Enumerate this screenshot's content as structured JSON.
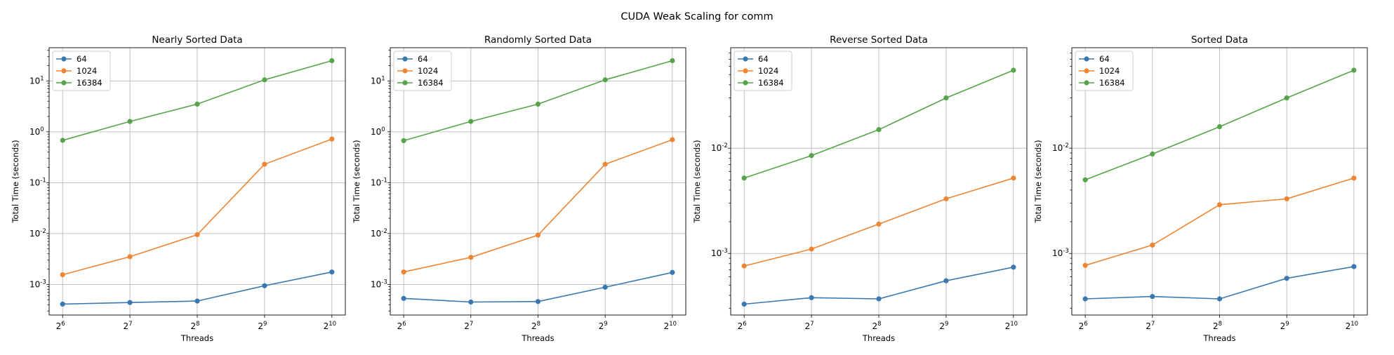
{
  "figure_title": "CUDA Weak Scaling for comm",
  "colors": {
    "64": "#3a78b0",
    "1024": "#ee8533",
    "16384": "#56a44a",
    "grid": "#b0b0b0",
    "axis": "#000000"
  },
  "chart_data": [
    {
      "type": "line",
      "title": "Nearly Sorted Data",
      "xlabel": "Threads",
      "ylabel": "Total Time (seconds)",
      "xscale": "log2",
      "yscale": "log10",
      "grid": true,
      "legend": "top-left",
      "x": [
        64,
        128,
        256,
        512,
        1024
      ],
      "x_tick_labels": [
        [
          "2",
          "6"
        ],
        [
          "2",
          "7"
        ],
        [
          "2",
          "8"
        ],
        [
          "2",
          "9"
        ],
        [
          "2",
          "10"
        ]
      ],
      "ylim": [
        0.00025,
        45
      ],
      "y_ticks": [
        {
          "value": 0.001,
          "exp": "-3"
        },
        {
          "value": 0.01,
          "exp": "-2"
        },
        {
          "value": 0.1,
          "exp": "-1"
        },
        {
          "value": 1,
          "exp": "0"
        },
        {
          "value": 10,
          "exp": "1"
        }
      ],
      "series": [
        {
          "name": "64",
          "values": [
            0.00041,
            0.00044,
            0.00047,
            0.00094,
            0.00175
          ]
        },
        {
          "name": "1024",
          "values": [
            0.00155,
            0.0035,
            0.0095,
            0.23,
            0.72
          ]
        },
        {
          "name": "16384",
          "values": [
            0.68,
            1.6,
            3.5,
            10.5,
            25
          ]
        }
      ]
    },
    {
      "type": "line",
      "title": "Randomly Sorted Data",
      "xlabel": "Threads",
      "ylabel": "Total Time (seconds)",
      "xscale": "log2",
      "yscale": "log10",
      "grid": true,
      "legend": "top-left",
      "x": [
        64,
        128,
        256,
        512,
        1024
      ],
      "x_tick_labels": [
        [
          "2",
          "6"
        ],
        [
          "2",
          "7"
        ],
        [
          "2",
          "8"
        ],
        [
          "2",
          "9"
        ],
        [
          "2",
          "10"
        ]
      ],
      "ylim": [
        0.00025,
        45
      ],
      "y_ticks": [
        {
          "value": 0.001,
          "exp": "-3"
        },
        {
          "value": 0.01,
          "exp": "-2"
        },
        {
          "value": 0.1,
          "exp": "-1"
        },
        {
          "value": 1,
          "exp": "0"
        },
        {
          "value": 10,
          "exp": "1"
        }
      ],
      "series": [
        {
          "name": "64",
          "values": [
            0.00053,
            0.00045,
            0.00046,
            0.00088,
            0.00172
          ]
        },
        {
          "name": "1024",
          "values": [
            0.00175,
            0.0034,
            0.0093,
            0.23,
            0.7
          ]
        },
        {
          "name": "16384",
          "values": [
            0.67,
            1.6,
            3.5,
            10.5,
            25
          ]
        }
      ]
    },
    {
      "type": "line",
      "title": "Reverse Sorted Data",
      "xlabel": "Threads",
      "ylabel": "Total Time (seconds)",
      "xscale": "log2",
      "yscale": "log10",
      "grid": true,
      "legend": "top-left",
      "x": [
        64,
        128,
        256,
        512,
        1024
      ],
      "x_tick_labels": [
        [
          "2",
          "6"
        ],
        [
          "2",
          "7"
        ],
        [
          "2",
          "8"
        ],
        [
          "2",
          "9"
        ],
        [
          "2",
          "10"
        ]
      ],
      "ylim": [
        0.00026,
        0.09
      ],
      "y_ticks": [
        {
          "value": 0.001,
          "exp": "-3"
        },
        {
          "value": 0.01,
          "exp": "-2"
        }
      ],
      "series": [
        {
          "name": "64",
          "values": [
            0.00033,
            0.00038,
            0.00037,
            0.00055,
            0.00074
          ]
        },
        {
          "name": "1024",
          "values": [
            0.00076,
            0.0011,
            0.0019,
            0.0033,
            0.0052
          ]
        },
        {
          "name": "16384",
          "values": [
            0.0052,
            0.0085,
            0.015,
            0.03,
            0.055
          ]
        }
      ]
    },
    {
      "type": "line",
      "title": "Sorted Data",
      "xlabel": "Threads",
      "ylabel": "Total Time (seconds)",
      "xscale": "log2",
      "yscale": "log10",
      "grid": true,
      "legend": "top-left",
      "x": [
        64,
        128,
        256,
        512,
        1024
      ],
      "x_tick_labels": [
        [
          "2",
          "6"
        ],
        [
          "2",
          "7"
        ],
        [
          "2",
          "8"
        ],
        [
          "2",
          "9"
        ],
        [
          "2",
          "10"
        ]
      ],
      "ylim": [
        0.00026,
        0.09
      ],
      "y_ticks": [
        {
          "value": 0.001,
          "exp": "-3"
        },
        {
          "value": 0.01,
          "exp": "-2"
        }
      ],
      "series": [
        {
          "name": "64",
          "values": [
            0.00037,
            0.00039,
            0.00037,
            0.00058,
            0.00075
          ]
        },
        {
          "name": "1024",
          "values": [
            0.00077,
            0.0012,
            0.0029,
            0.0033,
            0.0052
          ]
        },
        {
          "name": "16384",
          "values": [
            0.005,
            0.0088,
            0.016,
            0.03,
            0.055
          ]
        }
      ]
    }
  ]
}
